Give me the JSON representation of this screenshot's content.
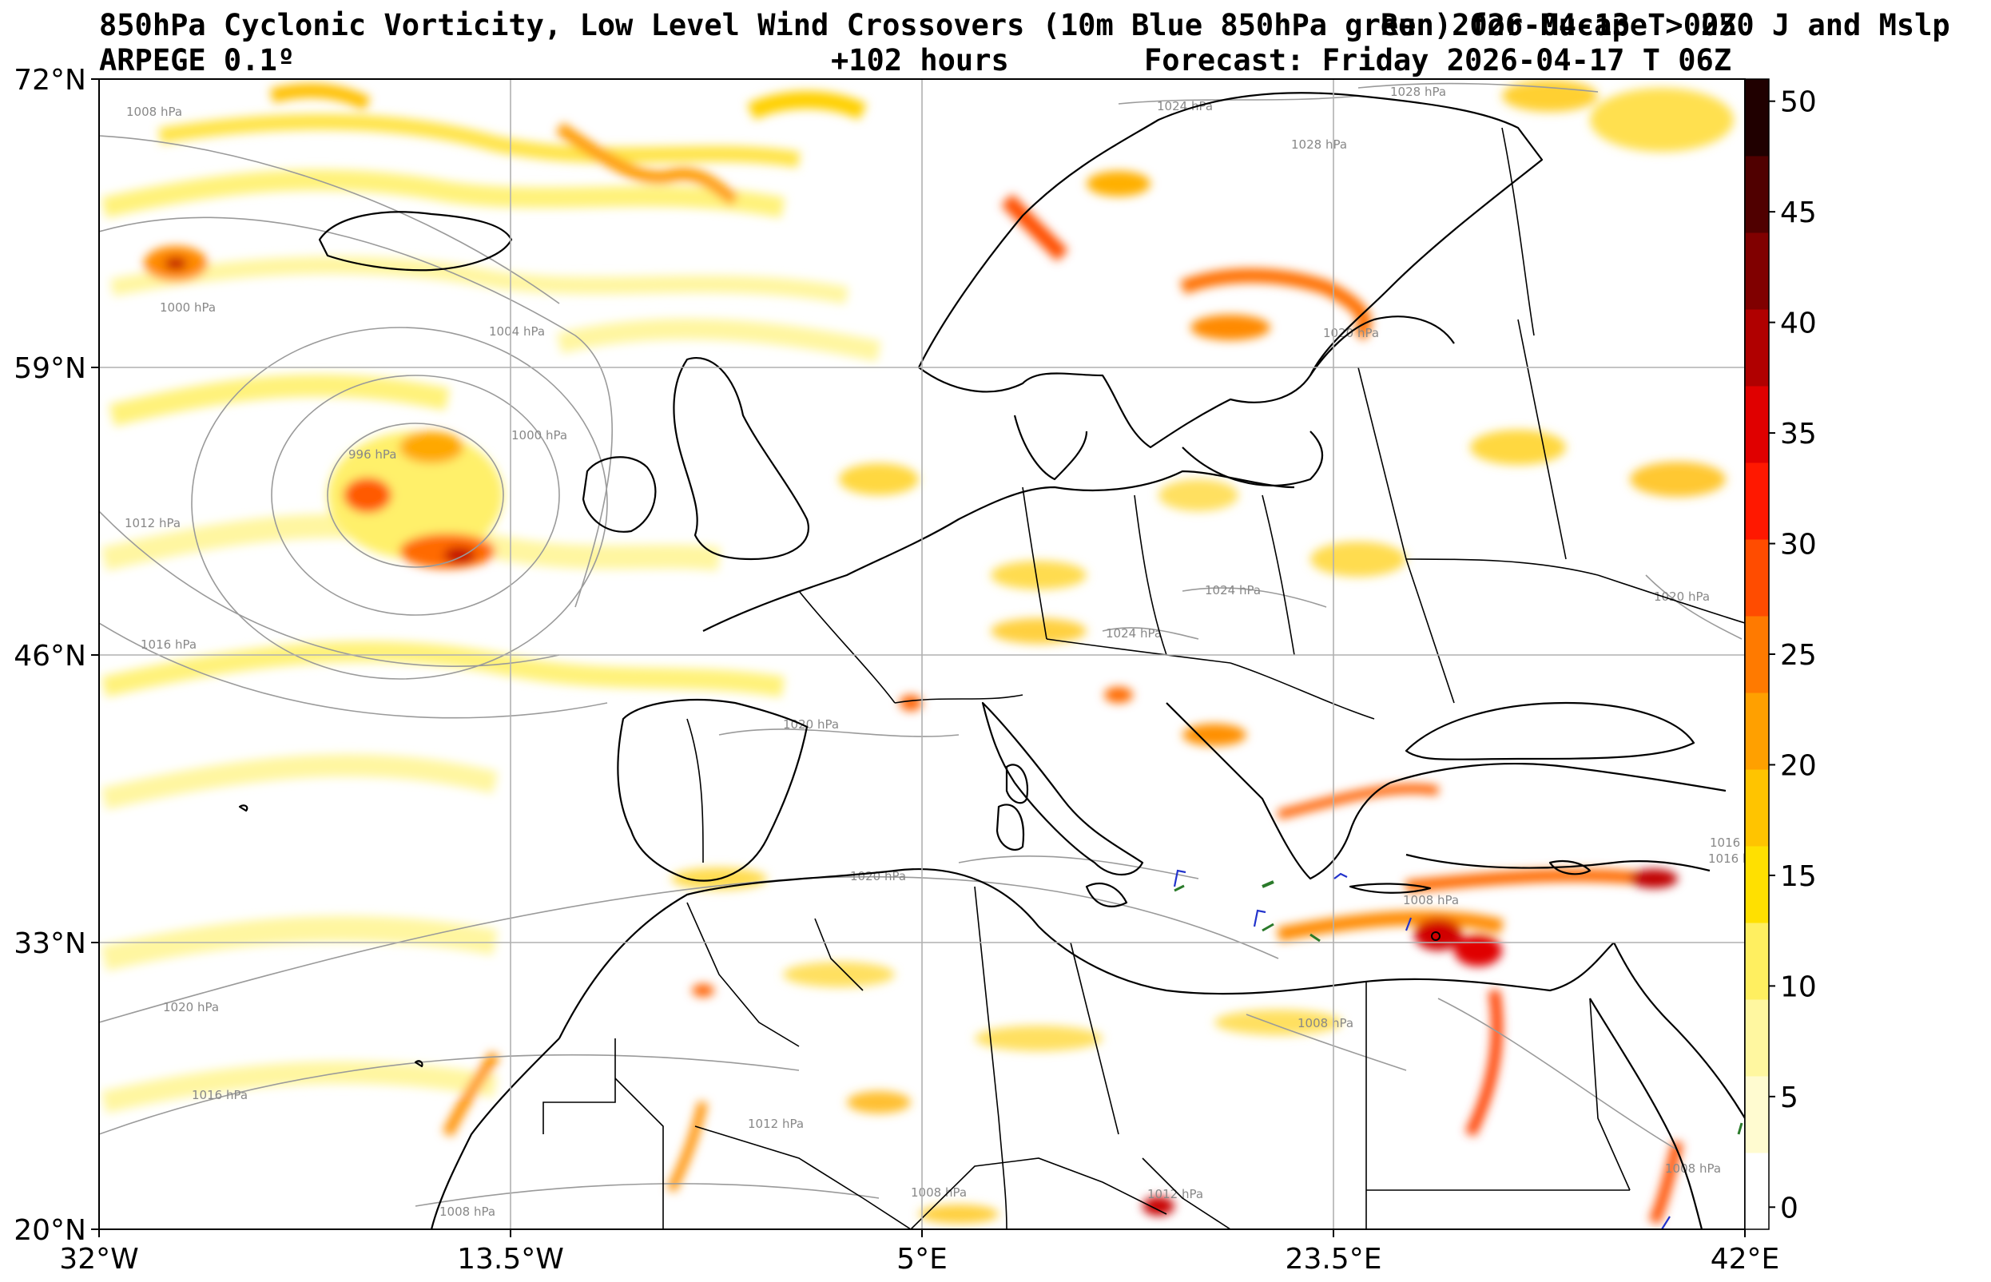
{
  "title": {
    "line1_left": "850hPa Cyclonic Vorticity, Low Level Wind Crossovers (10m Blue 850hPa green) for Mucape > 250 J and Mslp",
    "line1_right": "Run 2026-04-13 T 00Z",
    "line2_model": "ARPEGE 0.1º",
    "line2_hours": "+102 hours",
    "line2_forecast": "Forecast: Friday 2026-04-17 T 06Z"
  },
  "axes": {
    "lat_labels": [
      "72°N",
      "59°N",
      "46°N",
      "33°N",
      "20°N"
    ],
    "lon_labels": [
      "32°W",
      "13.5°W",
      "5°E",
      "23.5°E",
      "42°E"
    ],
    "lat_range": [
      20,
      72
    ],
    "lon_range": [
      -32,
      42
    ]
  },
  "colorbar": {
    "ticks": [
      "0",
      "5",
      "10",
      "15",
      "20",
      "25",
      "30",
      "35",
      "40",
      "45",
      "50"
    ],
    "range": [
      -1,
      51
    ],
    "colors": [
      "#ffffff",
      "#fffbd0",
      "#fff7a0",
      "#ffef60",
      "#ffe000",
      "#ffc400",
      "#ffa000",
      "#ff7a00",
      "#ff4c00",
      "#ff1800",
      "#e00000",
      "#b00000",
      "#800000",
      "#500000",
      "#200000"
    ]
  },
  "isobars": [
    {
      "label": "1008 hPa"
    },
    {
      "label": "1000 hPa"
    },
    {
      "label": "1004 hPa"
    },
    {
      "label": "996 hPa"
    },
    {
      "label": "1000 hPa"
    },
    {
      "label": "1012 hPa"
    },
    {
      "label": "1016 hPa"
    },
    {
      "label": "1024 hPa"
    },
    {
      "label": "1028 hPa"
    },
    {
      "label": "1028 hPa"
    },
    {
      "label": "1020 hPa"
    },
    {
      "label": "1024 hPa"
    },
    {
      "label": "1024 hPa"
    },
    {
      "label": "1020 hPa"
    },
    {
      "label": "1020 hPa"
    },
    {
      "label": "1020 hPa"
    },
    {
      "label": "1016 hPa"
    },
    {
      "label": "1008 hPa"
    },
    {
      "label": "1008 hPa"
    },
    {
      "label": "1012 hPa"
    },
    {
      "label": "1008 hPa"
    },
    {
      "label": "1008 hPa"
    },
    {
      "label": "1016 hPa"
    },
    {
      "label": "1020 hPa"
    },
    {
      "label": "1008 hPa"
    },
    {
      "label": "1012 hPa"
    },
    {
      "label": "1016 hPa"
    }
  ]
}
